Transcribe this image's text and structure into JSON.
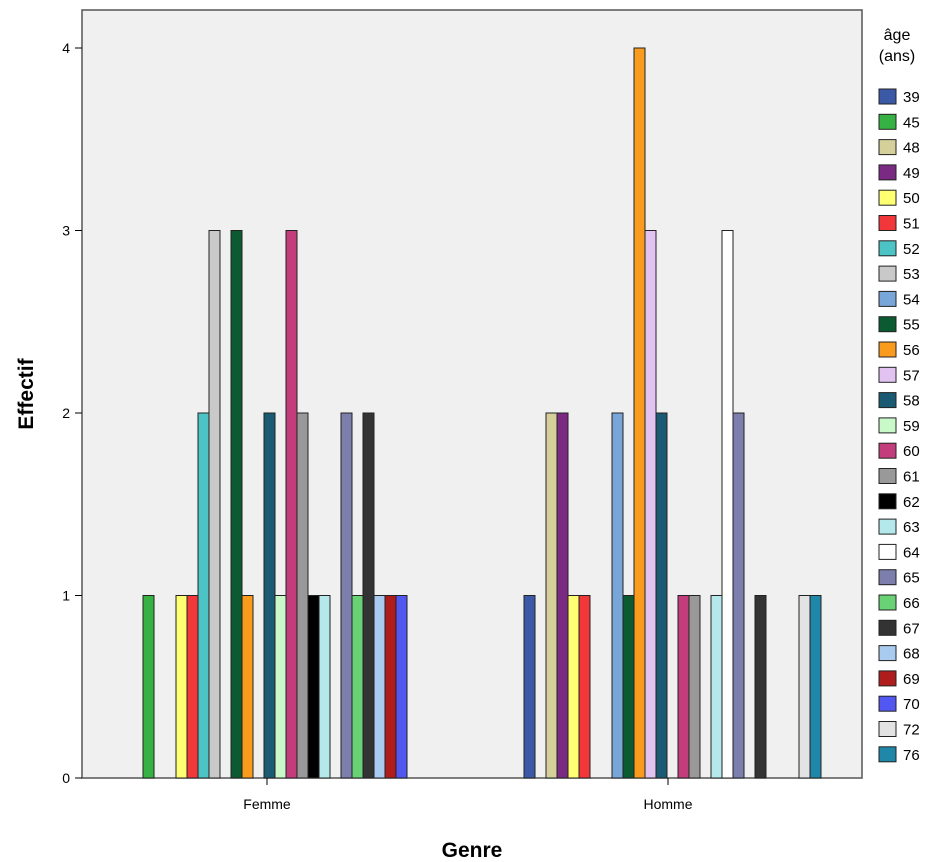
{
  "chart_data": {
    "type": "bar",
    "title": "",
    "xlabel": "Genre",
    "ylabel": "Effectif",
    "categories": [
      "Femme",
      "Homme"
    ],
    "ylim": [
      0,
      4
    ],
    "yticks": [
      "0",
      "1",
      "2",
      "3",
      "4"
    ],
    "grid": false,
    "legend_position": "right",
    "legend_title": [
      "âge",
      "(ans)"
    ],
    "series": [
      {
        "name": "39",
        "color": "#3C59A8",
        "values": [
          0,
          1
        ]
      },
      {
        "name": "45",
        "color": "#36B244",
        "values": [
          1,
          0
        ]
      },
      {
        "name": "48",
        "color": "#D5CF9A",
        "values": [
          0,
          2
        ]
      },
      {
        "name": "49",
        "color": "#7B2A83",
        "values": [
          0,
          2
        ]
      },
      {
        "name": "50",
        "color": "#FFFF72",
        "values": [
          1,
          1
        ]
      },
      {
        "name": "51",
        "color": "#F2373A",
        "values": [
          1,
          1
        ]
      },
      {
        "name": "52",
        "color": "#4CC4C6",
        "values": [
          2,
          0
        ]
      },
      {
        "name": "53",
        "color": "#C9C9C9",
        "values": [
          3,
          0
        ]
      },
      {
        "name": "54",
        "color": "#79A6D8",
        "values": [
          0,
          2
        ]
      },
      {
        "name": "55",
        "color": "#0B5A31",
        "values": [
          3,
          1
        ]
      },
      {
        "name": "56",
        "color": "#F99B1C",
        "values": [
          1,
          4
        ]
      },
      {
        "name": "57",
        "color": "#E2C2F1",
        "values": [
          0,
          3
        ]
      },
      {
        "name": "58",
        "color": "#1A5B73",
        "values": [
          2,
          2
        ]
      },
      {
        "name": "59",
        "color": "#C9F8C9",
        "values": [
          1,
          0
        ]
      },
      {
        "name": "60",
        "color": "#C33D7C",
        "values": [
          3,
          1
        ]
      },
      {
        "name": "61",
        "color": "#999999",
        "values": [
          2,
          1
        ]
      },
      {
        "name": "62",
        "color": "#000000",
        "values": [
          1,
          0
        ]
      },
      {
        "name": "63",
        "color": "#B4E8EA",
        "values": [
          1,
          1
        ]
      },
      {
        "name": "64",
        "color": "#FFFFFF",
        "values": [
          0,
          3
        ]
      },
      {
        "name": "65",
        "color": "#7C7EAC",
        "values": [
          2,
          2
        ]
      },
      {
        "name": "66",
        "color": "#69D275",
        "values": [
          1,
          0
        ]
      },
      {
        "name": "67",
        "color": "#333333",
        "values": [
          2,
          1
        ]
      },
      {
        "name": "68",
        "color": "#A9CBEF",
        "values": [
          1,
          0
        ]
      },
      {
        "name": "69",
        "color": "#AE1C1C",
        "values": [
          1,
          0
        ]
      },
      {
        "name": "70",
        "color": "#5357F2",
        "values": [
          1,
          0
        ]
      },
      {
        "name": "72",
        "color": "#E3E3E3",
        "values": [
          0,
          1
        ]
      },
      {
        "name": "76",
        "color": "#1F87A8",
        "values": [
          0,
          1
        ]
      }
    ]
  }
}
